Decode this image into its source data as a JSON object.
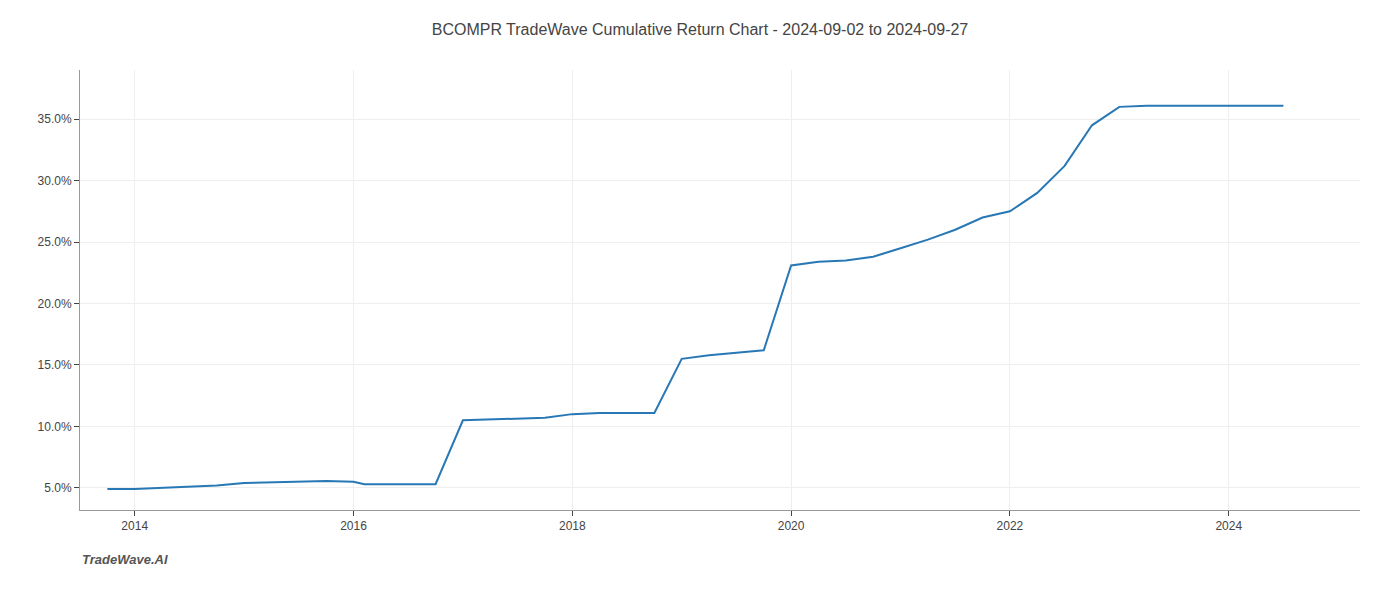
{
  "chart_data": {
    "type": "line",
    "title": "BCOMPR TradeWave Cumulative Return Chart - 2024-09-02 to 2024-09-27",
    "x": [
      2013.75,
      2014.0,
      2014.75,
      2015.0,
      2015.75,
      2016.0,
      2016.1,
      2016.75,
      2017.0,
      2017.5,
      2017.75,
      2018.0,
      2018.25,
      2018.75,
      2019.0,
      2019.25,
      2019.75,
      2020.0,
      2020.25,
      2020.5,
      2020.75,
      2021.0,
      2021.25,
      2021.5,
      2021.75,
      2022.0,
      2022.25,
      2022.5,
      2022.75,
      2023.0,
      2023.25,
      2023.5,
      2023.75,
      2024.0,
      2024.5
    ],
    "values": [
      4.9,
      4.9,
      5.2,
      5.4,
      5.55,
      5.5,
      5.3,
      5.3,
      10.5,
      10.6,
      10.7,
      11.0,
      11.1,
      11.1,
      15.5,
      15.8,
      16.2,
      23.1,
      23.4,
      23.5,
      23.8,
      24.5,
      25.2,
      26.0,
      27.0,
      27.5,
      29.0,
      31.2,
      34.5,
      36.0,
      36.1,
      36.1,
      36.1,
      36.1,
      36.1
    ],
    "color": "#2878b5",
    "xlim": [
      2013.5,
      2025.2
    ],
    "ylim": [
      3.2,
      39.0
    ],
    "xticks": [
      2014,
      2016,
      2018,
      2020,
      2022,
      2024
    ],
    "yticks": [
      {
        "value": 5.0,
        "label": "5.0%"
      },
      {
        "value": 10.0,
        "label": "10.0%"
      },
      {
        "value": 15.0,
        "label": "15.0%"
      },
      {
        "value": 20.0,
        "label": "20.0%"
      },
      {
        "value": 25.0,
        "label": "25.0%"
      },
      {
        "value": 30.0,
        "label": "30.0%"
      },
      {
        "value": 35.0,
        "label": "35.0%"
      }
    ],
    "grid": true,
    "annotations": [
      {
        "text": "TradeWave.AI"
      }
    ]
  }
}
